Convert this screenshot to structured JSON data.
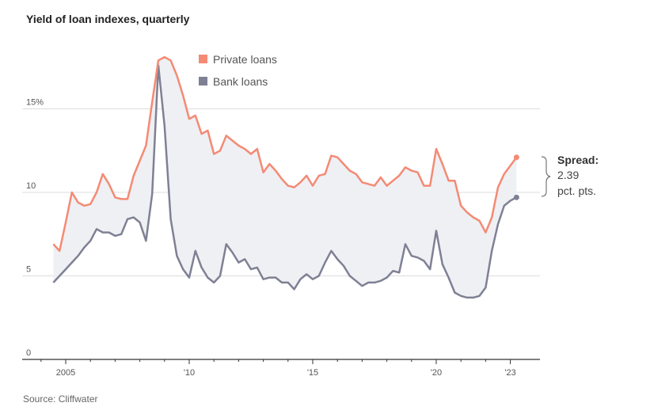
{
  "title": "Yield of loan indexes, quarterly",
  "source": "Source: Cliffwater",
  "colors": {
    "private": "#f48a74",
    "bank": "#7f8094",
    "fill": "#eef0f4",
    "grid": "#dddddd",
    "axis": "#333333"
  },
  "chart_data": {
    "type": "line",
    "title": "Yield of loan indexes, quarterly",
    "unit": "%",
    "ylim": [
      0,
      20
    ],
    "xlim": [
      2003.8,
      2023.8
    ],
    "y_ticks": [
      {
        "value": 0,
        "label": "0"
      },
      {
        "value": 5,
        "label": "5"
      },
      {
        "value": 10,
        "label": "10"
      },
      {
        "value": 15,
        "label": "15%"
      }
    ],
    "x_ticks": [
      {
        "value": 2005,
        "label": "2005"
      },
      {
        "value": 2010,
        "label": "'10"
      },
      {
        "value": 2015,
        "label": "'15"
      },
      {
        "value": 2020,
        "label": "'20"
      },
      {
        "value": 2023,
        "label": "'23"
      }
    ],
    "grid": true,
    "legend_position": "top-center",
    "series": [
      {
        "name": "Private loans",
        "color": "#f48a74",
        "points": [
          [
            2004.5,
            6.9
          ],
          [
            2004.75,
            6.5
          ],
          [
            2005.0,
            8.2
          ],
          [
            2005.25,
            10.0
          ],
          [
            2005.5,
            9.4
          ],
          [
            2005.75,
            9.2
          ],
          [
            2006.0,
            9.3
          ],
          [
            2006.25,
            10.0
          ],
          [
            2006.5,
            11.1
          ],
          [
            2006.75,
            10.5
          ],
          [
            2007.0,
            9.7
          ],
          [
            2007.25,
            9.6
          ],
          [
            2007.5,
            9.6
          ],
          [
            2007.75,
            11.0
          ],
          [
            2008.0,
            11.9
          ],
          [
            2008.25,
            12.8
          ],
          [
            2008.5,
            15.4
          ],
          [
            2008.75,
            17.9
          ],
          [
            2009.0,
            18.1
          ],
          [
            2009.25,
            17.9
          ],
          [
            2009.5,
            17.0
          ],
          [
            2009.75,
            15.8
          ],
          [
            2010.0,
            14.4
          ],
          [
            2010.25,
            14.6
          ],
          [
            2010.5,
            13.5
          ],
          [
            2010.75,
            13.7
          ],
          [
            2011.0,
            12.3
          ],
          [
            2011.25,
            12.5
          ],
          [
            2011.5,
            13.4
          ],
          [
            2011.75,
            13.1
          ],
          [
            2012.0,
            12.8
          ],
          [
            2012.25,
            12.6
          ],
          [
            2012.5,
            12.3
          ],
          [
            2012.75,
            12.6
          ],
          [
            2013.0,
            11.2
          ],
          [
            2013.25,
            11.7
          ],
          [
            2013.5,
            11.3
          ],
          [
            2013.75,
            10.8
          ],
          [
            2014.0,
            10.4
          ],
          [
            2014.25,
            10.3
          ],
          [
            2014.5,
            10.6
          ],
          [
            2014.75,
            11.0
          ],
          [
            2015.0,
            10.4
          ],
          [
            2015.25,
            11.0
          ],
          [
            2015.5,
            11.1
          ],
          [
            2015.75,
            12.2
          ],
          [
            2016.0,
            12.1
          ],
          [
            2016.25,
            11.7
          ],
          [
            2016.5,
            11.3
          ],
          [
            2016.75,
            11.1
          ],
          [
            2017.0,
            10.6
          ],
          [
            2017.25,
            10.5
          ],
          [
            2017.5,
            10.4
          ],
          [
            2017.75,
            10.9
          ],
          [
            2018.0,
            10.4
          ],
          [
            2018.25,
            10.7
          ],
          [
            2018.5,
            11.0
          ],
          [
            2018.75,
            11.5
          ],
          [
            2019.0,
            11.3
          ],
          [
            2019.25,
            11.2
          ],
          [
            2019.5,
            10.4
          ],
          [
            2019.75,
            10.4
          ],
          [
            2020.0,
            12.6
          ],
          [
            2020.25,
            11.7
          ],
          [
            2020.5,
            10.7
          ],
          [
            2020.75,
            10.7
          ],
          [
            2021.0,
            9.2
          ],
          [
            2021.25,
            8.8
          ],
          [
            2021.5,
            8.5
          ],
          [
            2021.75,
            8.3
          ],
          [
            2022.0,
            7.6
          ],
          [
            2022.25,
            8.5
          ],
          [
            2022.5,
            10.3
          ],
          [
            2022.75,
            11.1
          ],
          [
            2023.0,
            11.6
          ],
          [
            2023.25,
            12.1
          ]
        ]
      },
      {
        "name": "Bank loans",
        "color": "#7f8094",
        "points": [
          [
            2004.5,
            4.6
          ],
          [
            2004.75,
            5.0
          ],
          [
            2005.0,
            5.4
          ],
          [
            2005.25,
            5.8
          ],
          [
            2005.5,
            6.2
          ],
          [
            2005.75,
            6.7
          ],
          [
            2006.0,
            7.1
          ],
          [
            2006.25,
            7.8
          ],
          [
            2006.5,
            7.6
          ],
          [
            2006.75,
            7.6
          ],
          [
            2007.0,
            7.4
          ],
          [
            2007.25,
            7.5
          ],
          [
            2007.5,
            8.4
          ],
          [
            2007.75,
            8.5
          ],
          [
            2008.0,
            8.2
          ],
          [
            2008.25,
            7.1
          ],
          [
            2008.5,
            9.9
          ],
          [
            2008.75,
            17.6
          ],
          [
            2009.0,
            14.0
          ],
          [
            2009.25,
            8.4
          ],
          [
            2009.5,
            6.2
          ],
          [
            2009.75,
            5.4
          ],
          [
            2010.0,
            4.9
          ],
          [
            2010.25,
            6.5
          ],
          [
            2010.5,
            5.5
          ],
          [
            2010.75,
            4.9
          ],
          [
            2011.0,
            4.6
          ],
          [
            2011.25,
            5.0
          ],
          [
            2011.5,
            6.9
          ],
          [
            2011.75,
            6.4
          ],
          [
            2012.0,
            5.8
          ],
          [
            2012.25,
            6.0
          ],
          [
            2012.5,
            5.4
          ],
          [
            2012.75,
            5.5
          ],
          [
            2013.0,
            4.8
          ],
          [
            2013.25,
            4.9
          ],
          [
            2013.5,
            4.9
          ],
          [
            2013.75,
            4.6
          ],
          [
            2014.0,
            4.6
          ],
          [
            2014.25,
            4.2
          ],
          [
            2014.5,
            4.8
          ],
          [
            2014.75,
            5.1
          ],
          [
            2015.0,
            4.8
          ],
          [
            2015.25,
            5.0
          ],
          [
            2015.5,
            5.8
          ],
          [
            2015.75,
            6.5
          ],
          [
            2016.0,
            6.0
          ],
          [
            2016.25,
            5.6
          ],
          [
            2016.5,
            5.0
          ],
          [
            2016.75,
            4.7
          ],
          [
            2017.0,
            4.4
          ],
          [
            2017.25,
            4.6
          ],
          [
            2017.5,
            4.6
          ],
          [
            2017.75,
            4.7
          ],
          [
            2018.0,
            4.9
          ],
          [
            2018.25,
            5.3
          ],
          [
            2018.5,
            5.2
          ],
          [
            2018.75,
            6.9
          ],
          [
            2019.0,
            6.2
          ],
          [
            2019.25,
            6.1
          ],
          [
            2019.5,
            5.9
          ],
          [
            2019.75,
            5.4
          ],
          [
            2020.0,
            7.7
          ],
          [
            2020.25,
            5.7
          ],
          [
            2020.5,
            4.9
          ],
          [
            2020.75,
            4.0
          ],
          [
            2021.0,
            3.8
          ],
          [
            2021.25,
            3.7
          ],
          [
            2021.5,
            3.7
          ],
          [
            2021.75,
            3.8
          ],
          [
            2022.0,
            4.3
          ],
          [
            2022.25,
            6.5
          ],
          [
            2022.5,
            8.1
          ],
          [
            2022.75,
            9.2
          ],
          [
            2023.0,
            9.5
          ],
          [
            2023.25,
            9.7
          ]
        ]
      }
    ],
    "annotation": {
      "title": "Spread:",
      "value": "2.39",
      "unit": "pct. pts."
    }
  }
}
